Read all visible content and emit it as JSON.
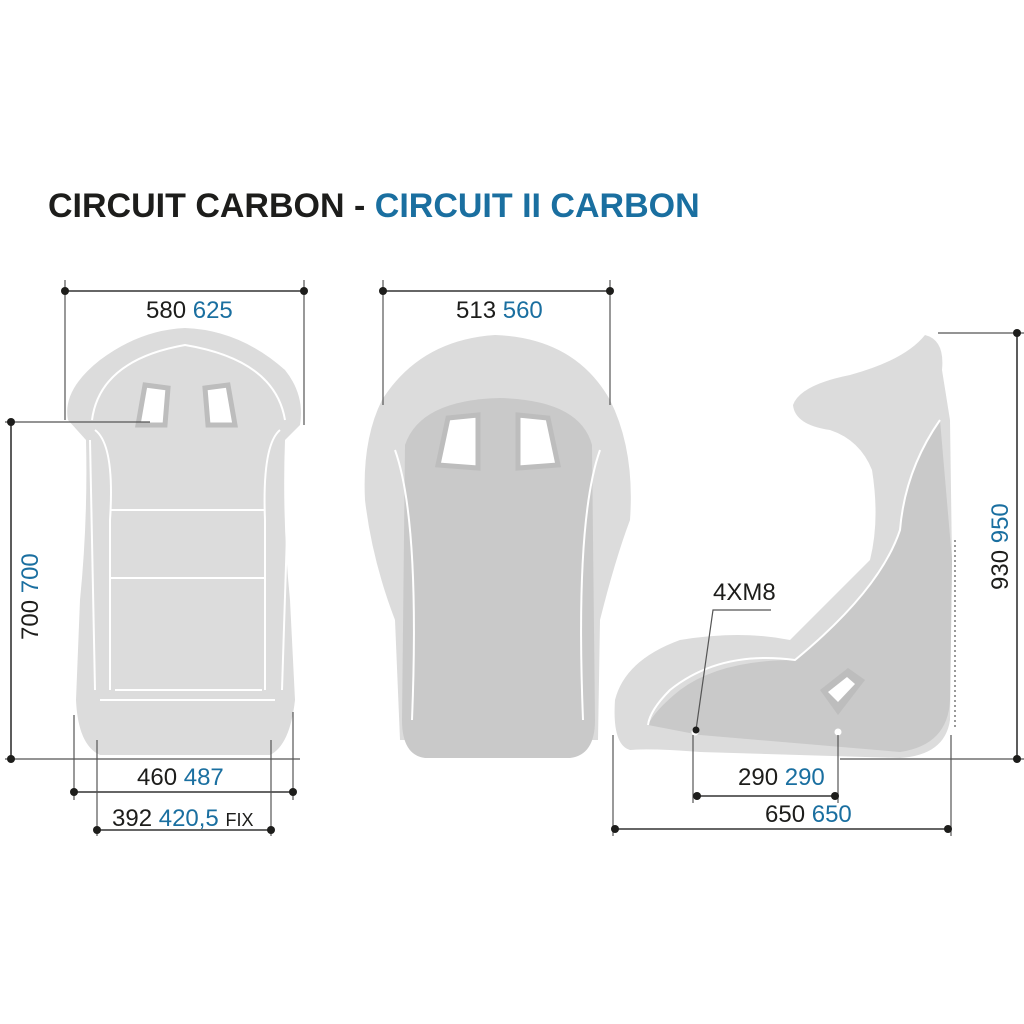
{
  "title": {
    "part1": "CIRCUIT CARBON - ",
    "part2": "CIRCUIT II CARBON"
  },
  "colors": {
    "text": "#1d1d1b",
    "accent": "#1a6fa0",
    "seat_light": "#dcdcdc",
    "seat_dark": "#c9c9c9"
  },
  "front_view": {
    "width": {
      "a": "580",
      "b": "625"
    },
    "height": {
      "a": "700",
      "b": "700"
    },
    "base_width": {
      "a": "460",
      "b": "487"
    },
    "mount_width": {
      "a": "392",
      "b": "420,5",
      "suffix": "FIX"
    }
  },
  "rear_view": {
    "width": {
      "a": "513",
      "b": "560"
    }
  },
  "side_view": {
    "bolts": "4XM8",
    "height": {
      "a": "930",
      "b": "950"
    },
    "mount_spacing": {
      "a": "290",
      "b": "290"
    },
    "depth": {
      "a": "650",
      "b": "650"
    }
  }
}
